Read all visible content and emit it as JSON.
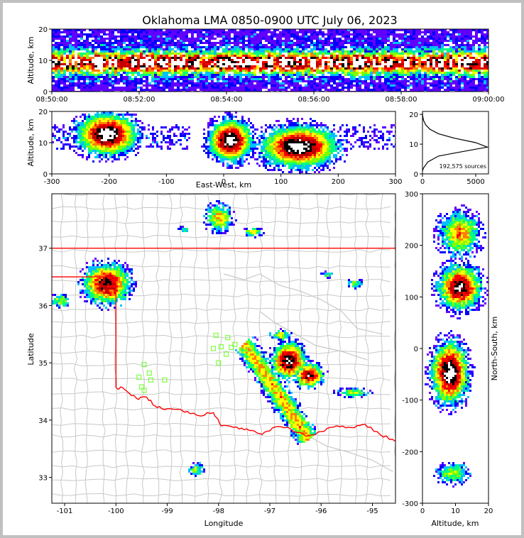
{
  "chart_data": [
    {
      "type": "heatmap",
      "panel": "time-altitude",
      "title": "Oklahoma LMA 0850-0900 UTC July 06, 2023",
      "xlabel": "",
      "ylabel": "Altitude, km",
      "xticks": [
        "08:50:00",
        "08:52:00",
        "08:54:00",
        "08:56:00",
        "08:58:00",
        "09:00:00"
      ],
      "yticks": [
        "0",
        "10",
        "20"
      ],
      "xlim": [
        "08:50:00",
        "09:00:00"
      ],
      "ylim": [
        0,
        20
      ]
    },
    {
      "type": "heatmap",
      "panel": "east-west-altitude",
      "xlabel": "East-West, km",
      "ylabel": "Altitude, km",
      "xticks": [
        "-300",
        "-200",
        "-100",
        "0",
        "100",
        "200",
        "300"
      ],
      "yticks": [
        "0",
        "10",
        "20"
      ],
      "xlim": [
        -300,
        300
      ],
      "ylim": [
        0,
        20
      ],
      "clusters_km": [
        {
          "x": -205,
          "z": 13,
          "rx": 55,
          "rz": 7
        },
        {
          "x": 10,
          "z": 11,
          "rx": 40,
          "rz": 7
        },
        {
          "x": 130,
          "z": 9,
          "rx": 70,
          "rz": 7
        }
      ]
    },
    {
      "type": "line",
      "panel": "altitude-histogram",
      "xticks": [
        "0",
        "5000"
      ],
      "yticks": [
        "0",
        "10",
        "20"
      ],
      "xlim": [
        0,
        6200
      ],
      "ylim": [
        0,
        21
      ],
      "annotation": "192,575 sources",
      "x": [
        0,
        100,
        500,
        1500,
        3000,
        5000,
        6100,
        5000,
        3000,
        1500,
        700,
        300,
        100,
        20,
        0
      ],
      "y": [
        1,
        2,
        4,
        6,
        7,
        8.3,
        9,
        10.5,
        12,
        13.5,
        15,
        16.5,
        18,
        19.5,
        20.5
      ]
    },
    {
      "type": "heatmap",
      "panel": "plan-view",
      "xlabel": "Longitude",
      "ylabel": "Latitude",
      "xticks": [
        "-101",
        "-100",
        "-99",
        "-98",
        "-97",
        "-96",
        "-95"
      ],
      "yticks": [
        "33",
        "34",
        "35",
        "36",
        "37"
      ],
      "xlim": [
        -101.25,
        -94.55
      ],
      "ylim": [
        32.55,
        37.95
      ],
      "station_marker_color": "#7fff3f",
      "state_line_color": "#ff0000",
      "stations": [
        [
          -99.45,
          34.97
        ],
        [
          -99.35,
          34.82
        ],
        [
          -99.55,
          34.75
        ],
        [
          -99.32,
          34.7
        ],
        [
          -99.05,
          34.7
        ],
        [
          -99.5,
          34.58
        ],
        [
          -99.45,
          34.52
        ],
        [
          -98.05,
          35.48
        ],
        [
          -97.82,
          35.44
        ],
        [
          -98.1,
          35.25
        ],
        [
          -97.95,
          35.28
        ],
        [
          -97.75,
          35.27
        ],
        [
          -97.68,
          35.32
        ],
        [
          -97.55,
          35.22
        ],
        [
          -97.4,
          35.23
        ],
        [
          -98.0,
          35.0
        ],
        [
          -97.85,
          35.15
        ]
      ]
    },
    {
      "type": "heatmap",
      "panel": "altitude-north-south",
      "xlabel": "Altitude, km",
      "ylabel": "North-South, km",
      "xticks": [
        "0",
        "10",
        "20"
      ],
      "yticks": [
        "-300",
        "-200",
        "-100",
        "0",
        "100",
        "200",
        "300"
      ],
      "xlim": [
        0,
        20
      ],
      "ylim": [
        -300,
        300
      ]
    }
  ],
  "colormap": [
    "#6000ff",
    "#0000ff",
    "#00c0ff",
    "#00ff80",
    "#80ff00",
    "#ffff00",
    "#ff8000",
    "#ff0000",
    "#c00000",
    "#000000",
    "#ffffff"
  ]
}
